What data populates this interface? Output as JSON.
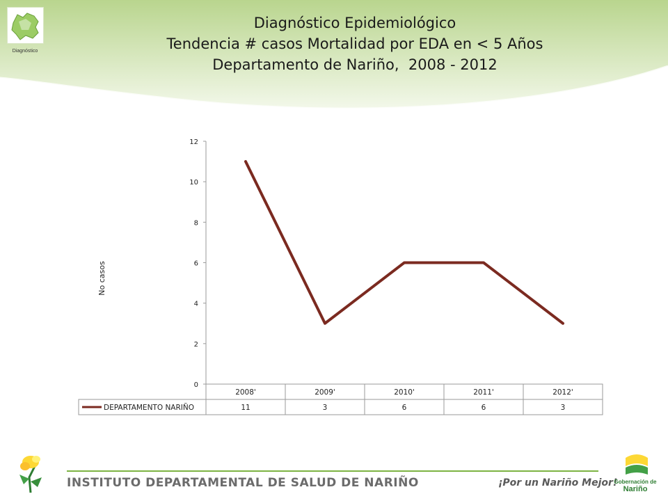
{
  "header": {
    "logo_caption": "Diagnóstico",
    "title_lines": [
      "Diagnóstico Epidemiológico",
      "Tendencia # casos Mortalidad por EDA en < 5 Años",
      "Departamento de Nariño,  2008 - 2012"
    ]
  },
  "chart_data": {
    "type": "line",
    "categories": [
      "2008'",
      "2009'",
      "2010'",
      "2011'",
      "2012'"
    ],
    "series": [
      {
        "name": "DEPARTAMENTO NARIÑO",
        "values": [
          11,
          3,
          6,
          6,
          3
        ]
      }
    ],
    "ylabel": "No casos",
    "xlabel": "",
    "ylim": [
      0,
      12
    ],
    "yticks": [
      0,
      2,
      4,
      6,
      8,
      10,
      12
    ],
    "grid": false,
    "legend": "data-table",
    "colors": {
      "series": "#7b2a20"
    }
  },
  "footer": {
    "institution": "INSTITUTO DEPARTAMENTAL DE SALUD DE NARIÑO",
    "slogan": "¡Por un Nariño Mejor!",
    "gov_logo_lines": [
      "Gobernación de",
      "Nariño"
    ]
  },
  "colors": {
    "accent_green": "#7cb342",
    "swoosh": "#c5dca0",
    "logo_yellow": "#f2d71c"
  }
}
